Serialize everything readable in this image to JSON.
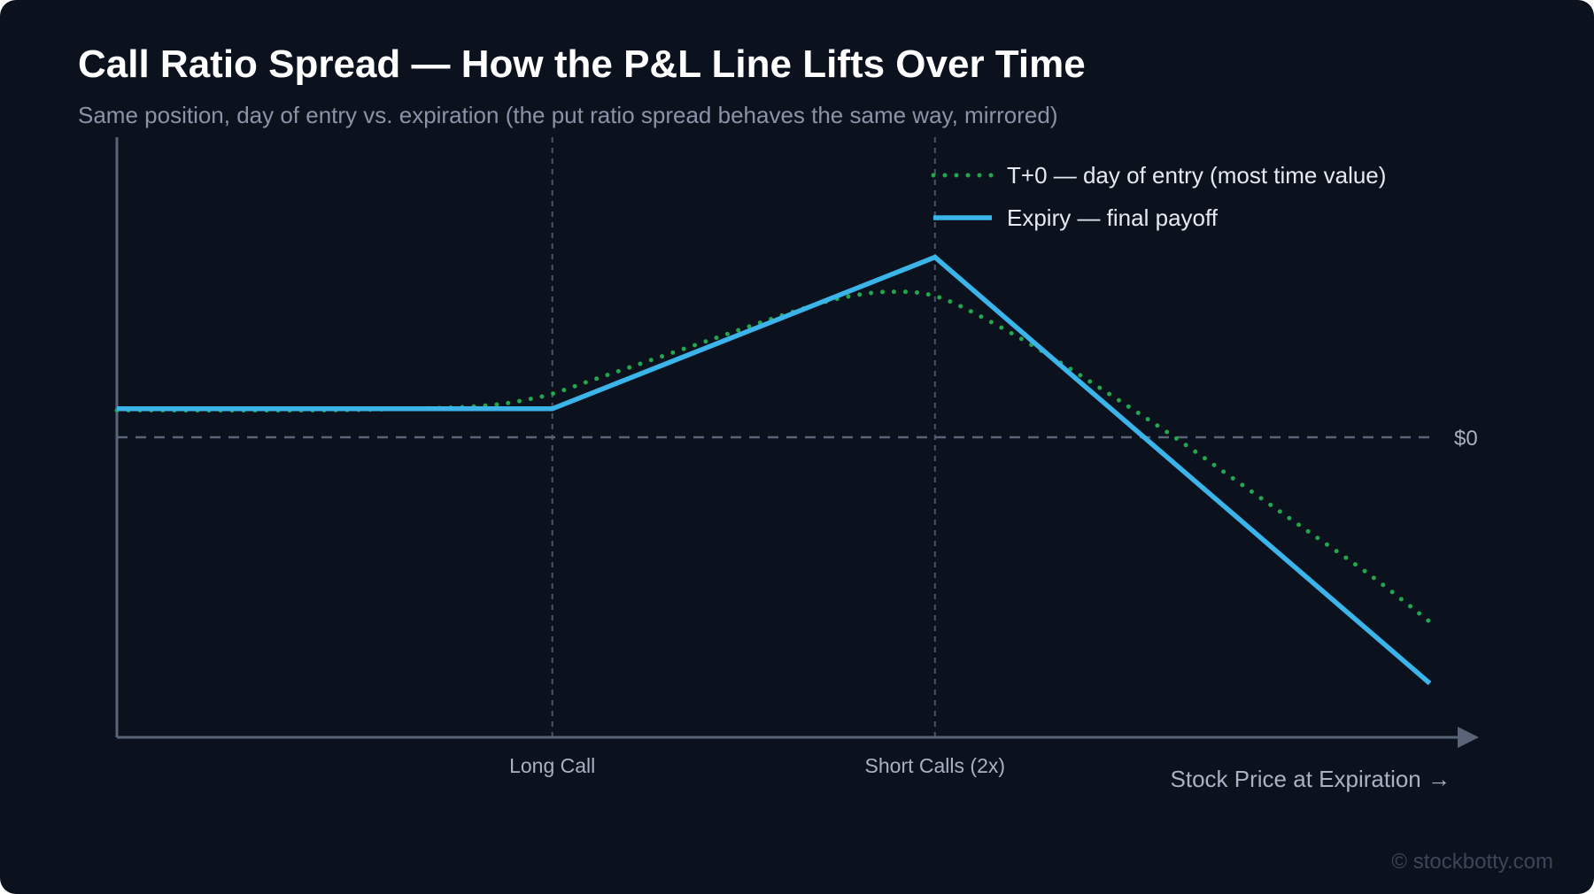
{
  "title": "Call Ratio Spread — How the P&L Line Lifts Over Time",
  "subtitle": "Same position, day of entry vs. expiration (the put ratio spread behaves the same way, mirrored)",
  "watermark": "© stockbotty.com",
  "colors": {
    "background": "#0b121e",
    "axis": "#5a6478",
    "t0_line": "#22a64e",
    "expiry_line": "#3bb4ea",
    "guide": "#49546a",
    "label": "#a9b2c2"
  },
  "chart_data": {
    "type": "line",
    "title": "Call Ratio Spread — How the P&L Line Lifts Over Time",
    "xlabel": "Stock Price at Expiration →",
    "ylabel": "",
    "grid": false,
    "legend_position": "top-right",
    "xlim": [
      0,
      100
    ],
    "ylim": [
      -100,
      100
    ],
    "x_ticks": [
      {
        "x": 33,
        "label": "Long Call"
      },
      {
        "x": 62,
        "label": "Short Calls (2x)"
      }
    ],
    "reference_lines": [
      {
        "y": 0,
        "label": "$0"
      }
    ],
    "series": [
      {
        "name": "T+0 — day of entry (most time value)",
        "style": "dotted",
        "x": [
          0,
          15,
          22,
          26,
          29,
          31,
          33,
          36,
          40,
          45,
          50,
          54,
          57,
          59,
          61,
          63,
          66,
          70,
          75,
          80,
          85,
          90,
          95,
          99.5
        ],
        "y": [
          9,
          9,
          9.5,
          10,
          11,
          12.5,
          14.5,
          19,
          25,
          32.5,
          40,
          45.5,
          48,
          48.5,
          48,
          45.5,
          39,
          29,
          15,
          0.5,
          -15,
          -30.5,
          -46,
          -61.5
        ]
      },
      {
        "name": "Expiry — final payoff",
        "style": "solid",
        "x": [
          0,
          33,
          62,
          99.5
        ],
        "y": [
          9.5,
          9.5,
          60,
          -82
        ]
      }
    ]
  }
}
